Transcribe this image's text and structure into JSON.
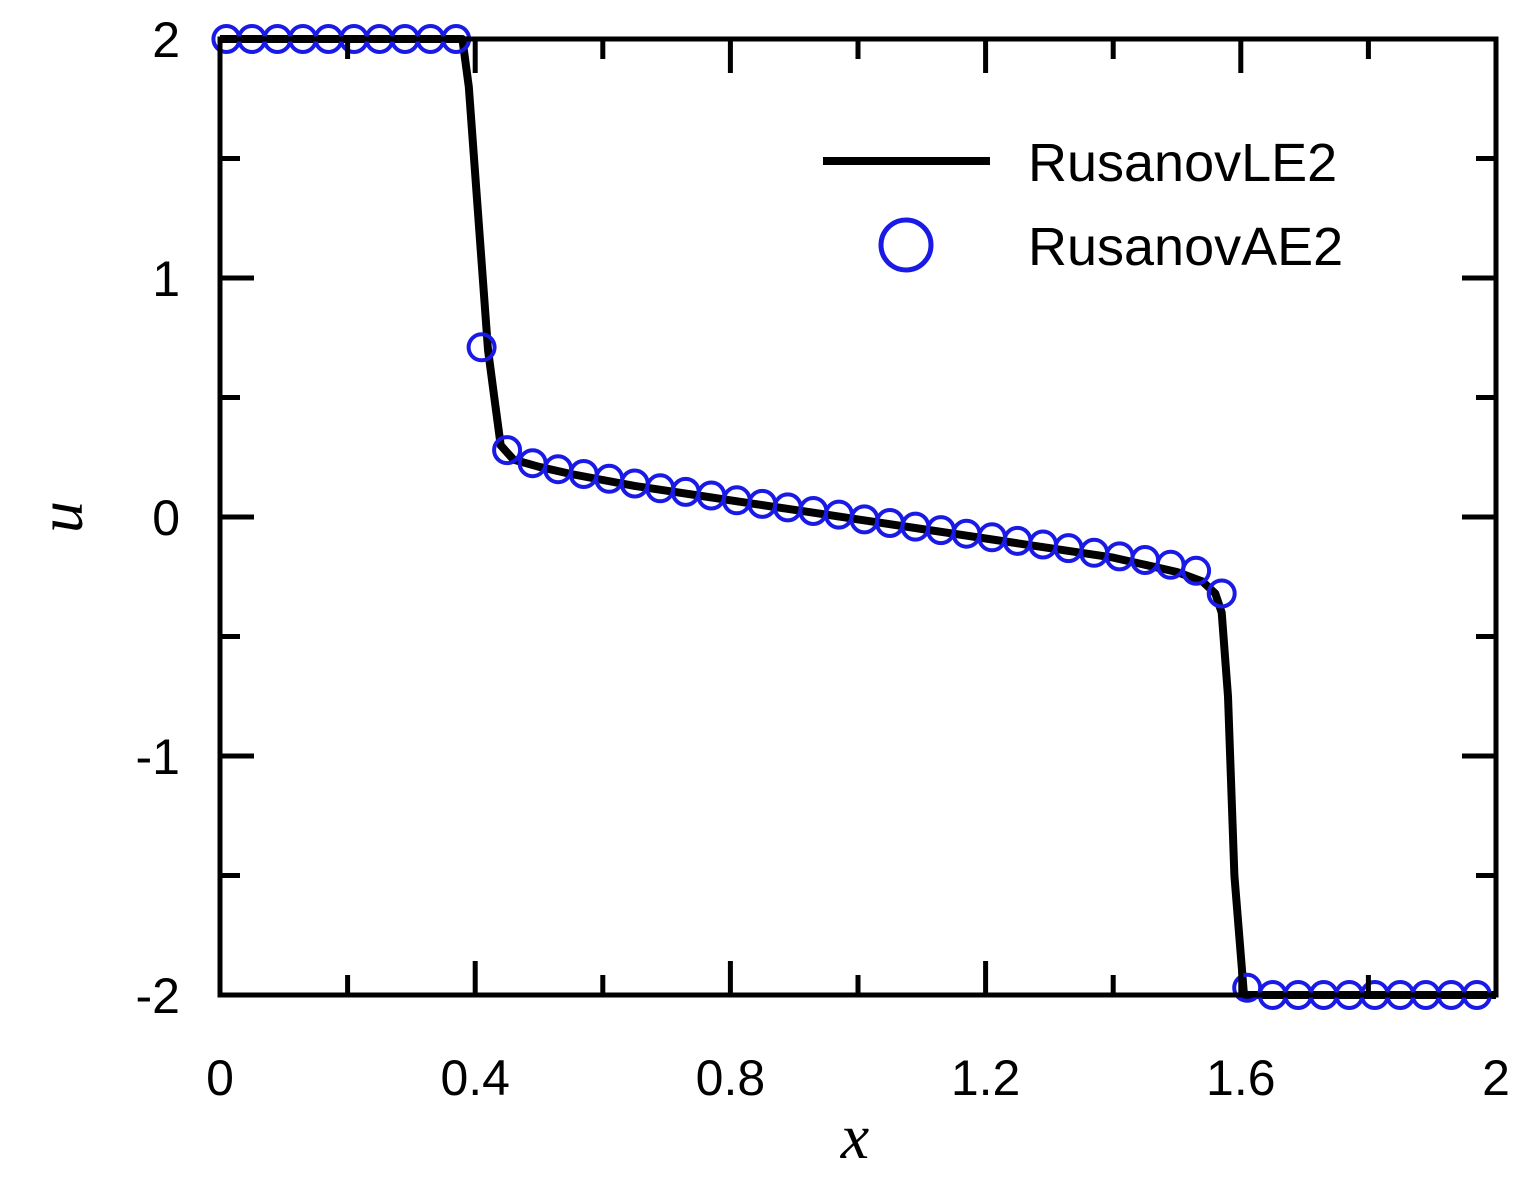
{
  "chart_data": {
    "type": "line",
    "title": "",
    "xlabel": "x",
    "ylabel": "u",
    "xlim": [
      0,
      2
    ],
    "ylim": [
      -2,
      2
    ],
    "x_ticks": [
      0,
      0.4,
      0.8,
      1.2,
      1.6,
      2
    ],
    "x_tick_labels": [
      "0",
      "0.4",
      "0.8",
      "1.2",
      "1.6",
      "2"
    ],
    "y_ticks": [
      2,
      1,
      0,
      -1,
      -2
    ],
    "y_tick_labels": [
      "2",
      "1",
      "0",
      "-1",
      "-2"
    ],
    "grid": false,
    "legend_position": "top-right",
    "series": [
      {
        "name": "RusanovLE2",
        "style": "line",
        "color": "#000000",
        "x": [
          0.0,
          0.38,
          0.39,
          0.42,
          0.43,
          0.44,
          0.46,
          0.5,
          0.55,
          0.6,
          0.65,
          0.7,
          0.75,
          0.8,
          0.85,
          0.9,
          0.95,
          1.0,
          1.05,
          1.1,
          1.15,
          1.2,
          1.25,
          1.3,
          1.35,
          1.4,
          1.45,
          1.5,
          1.54,
          1.56,
          1.57,
          1.58,
          1.59,
          1.605,
          1.62,
          1.65,
          1.7,
          2.0
        ],
        "y": [
          2.0,
          2.0,
          1.8,
          0.7,
          0.5,
          0.3,
          0.24,
          0.21,
          0.18,
          0.155,
          0.13,
          0.11,
          0.09,
          0.07,
          0.05,
          0.03,
          0.01,
          -0.01,
          -0.03,
          -0.05,
          -0.07,
          -0.09,
          -0.11,
          -0.13,
          -0.15,
          -0.17,
          -0.2,
          -0.23,
          -0.27,
          -0.32,
          -0.4,
          -0.75,
          -1.5,
          -2.0,
          -2.0,
          -2.0,
          -2.0,
          -2.0
        ]
      },
      {
        "name": "RusanovAE2",
        "style": "circle",
        "color": "#1a1ae6",
        "x": [
          0.01,
          0.05,
          0.09,
          0.13,
          0.17,
          0.21,
          0.25,
          0.29,
          0.33,
          0.37,
          0.41,
          0.45,
          0.49,
          0.53,
          0.57,
          0.61,
          0.65,
          0.69,
          0.73,
          0.77,
          0.81,
          0.85,
          0.89,
          0.93,
          0.97,
          1.01,
          1.05,
          1.09,
          1.13,
          1.17,
          1.21,
          1.25,
          1.29,
          1.33,
          1.37,
          1.41,
          1.45,
          1.49,
          1.53,
          1.57,
          1.61,
          1.65,
          1.69,
          1.73,
          1.77,
          1.81,
          1.85,
          1.89,
          1.93,
          1.97
        ],
        "y": [
          2.0,
          2.0,
          2.0,
          2.0,
          2.0,
          2.0,
          2.0,
          2.0,
          2.0,
          2.0,
          0.71,
          0.28,
          0.225,
          0.2,
          0.18,
          0.16,
          0.14,
          0.12,
          0.105,
          0.09,
          0.07,
          0.055,
          0.04,
          0.025,
          0.01,
          -0.01,
          -0.025,
          -0.04,
          -0.055,
          -0.07,
          -0.085,
          -0.1,
          -0.115,
          -0.13,
          -0.15,
          -0.165,
          -0.18,
          -0.2,
          -0.225,
          -0.32,
          -1.97,
          -2.0,
          -2.0,
          -2.0,
          -2.0,
          -2.0,
          -2.0,
          -2.0,
          -2.0,
          -2.0
        ]
      }
    ]
  }
}
